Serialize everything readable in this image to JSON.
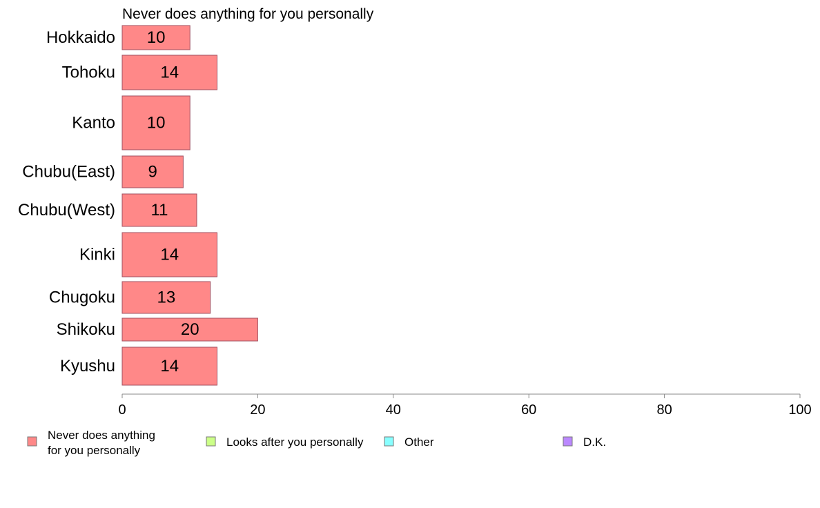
{
  "chart_data": {
    "type": "bar",
    "orientation": "horizontal",
    "title": "Never does anything for you personally",
    "categories": [
      "Hokkaido",
      "Tohoku",
      "Kanto",
      "Chubu(East)",
      "Chubu(West)",
      "Kinki",
      "Chugoku",
      "Shikoku",
      "Kyushu"
    ],
    "series": [
      {
        "name": "Never does anything for you personally",
        "color": "#ff8888",
        "values": [
          10,
          14,
          10,
          9,
          11,
          14,
          13,
          20,
          14
        ]
      }
    ],
    "data_labels": [
      "10",
      "14",
      "10",
      "9",
      "11",
      "14",
      "13",
      "20",
      "14"
    ],
    "xlim": [
      0,
      100
    ],
    "xticks": [
      0,
      20,
      40,
      60,
      80,
      100
    ],
    "xtick_labels": [
      "0",
      "20",
      "40",
      "60",
      "80",
      "100"
    ],
    "grid": false,
    "legend_position": "bottom",
    "legend": [
      {
        "lines": [
          "Never does anything",
          "for you personally"
        ],
        "color": "#ff8888"
      },
      {
        "lines": [
          "Looks after you personally"
        ],
        "color": "#ccff88"
      },
      {
        "lines": [
          "Other"
        ],
        "color": "#88ffff"
      },
      {
        "lines": [
          "D.K."
        ],
        "color": "#bb88ff"
      }
    ]
  }
}
